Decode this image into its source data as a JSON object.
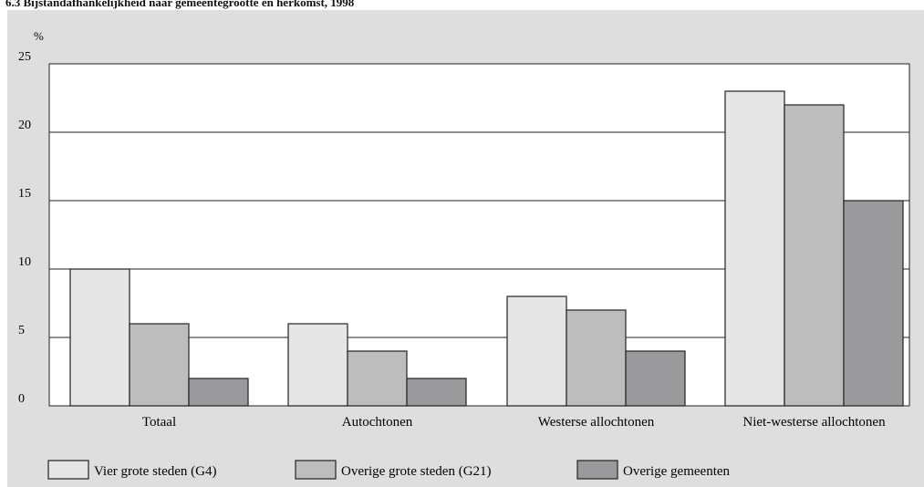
{
  "title": "6.3 Bijstandafhankelijkheid naar gemeentegrootte en herkomst, 1998",
  "colors": {
    "background": "#dedede",
    "plot_area": "#ffffff",
    "series": [
      "#e6e6e6",
      "#bdbdbd",
      "#9a9a9c"
    ],
    "stroke": "#222222"
  },
  "chart_data": {
    "type": "bar",
    "title": "6.3 Bijstandafhankelijkheid naar gemeentegrootte en herkomst, 1998",
    "ylabel": "%",
    "xlabel": "",
    "ylim": [
      0,
      25
    ],
    "yticks": [
      "0",
      "5",
      "10",
      "15",
      "20",
      "25"
    ],
    "grid": true,
    "legend": "bottom",
    "categories": [
      "Totaal",
      "Autochtonen",
      "Westerse allochtonen",
      "Niet-westerse allochtonen"
    ],
    "series": [
      {
        "name": "Vier grote steden (G4)",
        "values": [
          10,
          6,
          8,
          23
        ]
      },
      {
        "name": "Overige grote steden (G21)",
        "values": [
          6,
          4,
          7,
          22
        ]
      },
      {
        "name": "Overige gemeenten",
        "values": [
          2,
          2,
          4,
          15
        ]
      }
    ]
  }
}
